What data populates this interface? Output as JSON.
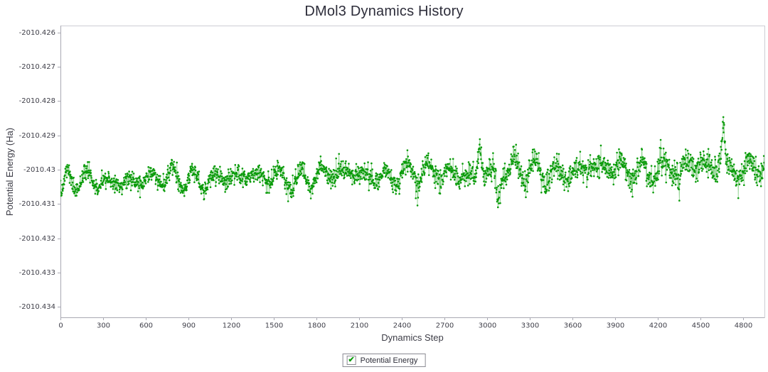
{
  "page": {
    "title": "DMol3 Dynamics History"
  },
  "legend": {
    "label": "Potential Energy",
    "checked": true,
    "check_glyph": "✔"
  },
  "colors": {
    "series": "#0a9b0a",
    "axis": "#a9a9b3",
    "frame": "#cdcdd4",
    "tick_text": "#3f3f49",
    "title_text": "#2d2d3a",
    "check": "#0a9b0a"
  },
  "chart_data": {
    "type": "scatter",
    "title": "DMol3 Dynamics History",
    "xlabel": "Dynamics Step",
    "ylabel": "Potential Energy (Ha)",
    "grid": false,
    "legend_position": "bottom-center",
    "xlim": [
      0,
      4950
    ],
    "ylim": [
      -2010.4343,
      -2010.4258
    ],
    "x_ticks": [
      0,
      300,
      600,
      900,
      1200,
      1500,
      1800,
      2100,
      2400,
      2700,
      3000,
      3300,
      3600,
      3900,
      4200,
      4500,
      4800
    ],
    "y_tick_values": [
      -2010.426,
      -2010.427,
      -2010.428,
      -2010.429,
      -2010.43,
      -2010.431,
      -2010.432,
      -2010.433,
      -2010.434
    ],
    "y_tick_labels": [
      "-2010.426",
      "-2010.427",
      "-2010.428",
      "-2010.429",
      "-2010.43",
      "-2010.431",
      "-2010.432",
      "-2010.433",
      "-2010.434"
    ],
    "series": [
      {
        "name": "Potential Energy",
        "color": "#0a9b0a",
        "marker": "circle",
        "marker_radius_px": 1.3,
        "summary": {
          "description": "Dense noisy molecular-dynamics potential-energy trace oscillating quasi-periodically, slowly drifting upward with growing spread",
          "x_range": [
            0,
            4950
          ],
          "mean_start": -2010.4303,
          "mean_end": -2010.4298,
          "band_halfwidth": 0.0008,
          "y_min": -2010.4314,
          "y_min_x": 3080,
          "y_max": -2010.4286,
          "y_max_x": 4660,
          "oscillation_period_steps": 150
        },
        "synthesis": {
          "n_points": 2450,
          "seed": 7,
          "base": -2010.43035,
          "trend_total": 0.00045,
          "osc1": {
            "period": 150,
            "amplitude": 0.00028
          },
          "mod_period": 820,
          "mod_depth": 0.45,
          "osc2": {
            "period": 620,
            "amplitude": 8e-05
          },
          "noise_sigma": 0.00012,
          "noise_growth": 0.6,
          "spike_prob": 0.006,
          "spike_scale": 0.0005,
          "events": [
            {
              "x": 12,
              "dy": -0.0005,
              "w": 20
            },
            {
              "x": 2950,
              "dy": 0.0009,
              "w": 16
            },
            {
              "x": 3080,
              "dy": -0.0009,
              "w": 16
            },
            {
              "x": 4350,
              "dy": -0.0006,
              "w": 14
            },
            {
              "x": 4660,
              "dy": 0.0011,
              "w": 16
            }
          ]
        }
      }
    ]
  }
}
